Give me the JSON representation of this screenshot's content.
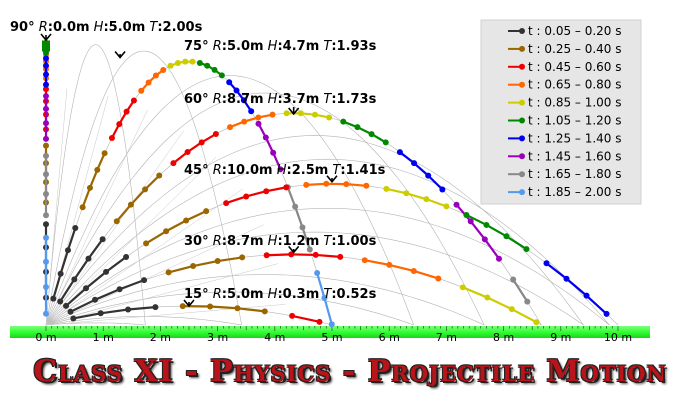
{
  "title": "Class XI - Physics - Projectile Motion",
  "x_axis": {
    "ticks": [
      {
        "value": 0,
        "label": "0 m"
      },
      {
        "value": 1,
        "label": "1 m"
      },
      {
        "value": 2,
        "label": "2 m"
      },
      {
        "value": 3,
        "label": "3 m"
      },
      {
        "value": 4,
        "label": "4 m"
      },
      {
        "value": 5,
        "label": "5 m"
      },
      {
        "value": 6,
        "label": "6 m"
      },
      {
        "value": 7,
        "label": "7 m"
      },
      {
        "value": 8,
        "label": "8 m"
      },
      {
        "value": 9,
        "label": "9 m"
      },
      {
        "value": 10,
        "label": "10 m"
      }
    ]
  },
  "ground_color": "#33ff33",
  "trajectories": [
    {
      "angle": "90°",
      "range": "0.0m",
      "height": "5.0m",
      "time": "2.00s",
      "angle_deg": 90,
      "range_m": 0.0,
      "height_m": 5.0,
      "time_s": 2.0
    },
    {
      "angle": "75°",
      "range": "5.0m",
      "height": "4.7m",
      "time": "1.93s",
      "angle_deg": 75,
      "range_m": 5.0,
      "height_m": 4.7,
      "time_s": 1.93
    },
    {
      "angle": "60°",
      "range": "8.7m",
      "height": "3.7m",
      "time": "1.73s",
      "angle_deg": 60,
      "range_m": 8.7,
      "height_m": 3.7,
      "time_s": 1.73
    },
    {
      "angle": "45°",
      "range": "10.0m",
      "height": "2.5m",
      "time": "1.41s",
      "angle_deg": 45,
      "range_m": 10.0,
      "height_m": 2.5,
      "time_s": 1.41
    },
    {
      "angle": "30°",
      "range": "8.7m",
      "height": "1.2m",
      "time": "1.00s",
      "angle_deg": 30,
      "range_m": 8.7,
      "height_m": 1.2,
      "time_s": 1.0
    },
    {
      "angle": "15°",
      "range": "5.0m",
      "height": "0.3m",
      "time": "0.52s",
      "angle_deg": 15,
      "range_m": 5.0,
      "height_m": 0.3,
      "time_s": 0.52
    }
  ],
  "legend": [
    {
      "label": "t : 0.05 – 0.20 s",
      "color": "#333333",
      "t0": 0.05,
      "t1": 0.2
    },
    {
      "label": "t : 0.25 – 0.40 s",
      "color": "#996600",
      "t0": 0.25,
      "t1": 0.4
    },
    {
      "label": "t : 0.45 – 0.60 s",
      "color": "#ee0000",
      "t0": 0.45,
      "t1": 0.6
    },
    {
      "label": "t : 0.65 – 0.80 s",
      "color": "#ff6600",
      "t0": 0.65,
      "t1": 0.8
    },
    {
      "label": "t : 0.85 – 1.00 s",
      "color": "#cccc00",
      "t0": 0.85,
      "t1": 1.0
    },
    {
      "label": "t : 1.05 – 1.20 s",
      "color": "#008800",
      "t0": 1.05,
      "t1": 1.2
    },
    {
      "label": "t : 1.25 – 1.40 s",
      "color": "#0000ee",
      "t0": 1.25,
      "t1": 1.4
    },
    {
      "label": "t : 1.45 – 1.60 s",
      "color": "#9900bb",
      "t0": 1.45,
      "t1": 1.6
    },
    {
      "label": "t : 1.65 – 1.80 s",
      "color": "#888888",
      "t0": 1.65,
      "t1": 1.8
    },
    {
      "label": "t : 1.85 – 2.00 s",
      "color": "#5599ee",
      "t0": 1.85,
      "t1": 2.0
    }
  ],
  "legend_bg": "#e6e6e6",
  "title_color": "#b8141a"
}
